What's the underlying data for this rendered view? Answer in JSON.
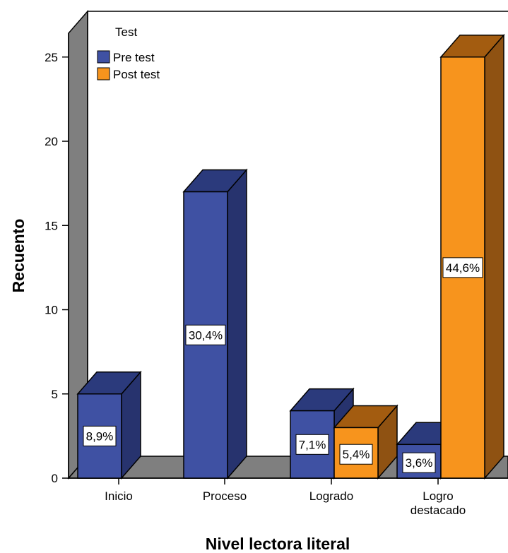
{
  "chart_data": {
    "type": "bar",
    "style": "3d-clustered",
    "categories": [
      "Inicio",
      "Proceso",
      "Logrado",
      "Logro destacado"
    ],
    "series": [
      {
        "name": "Pre test",
        "values": [
          5,
          17,
          4,
          2
        ],
        "labels": [
          "8,9%",
          "30,4%",
          "7,1%",
          "3,6%"
        ],
        "color": "#3f51a3",
        "side_color": "#27336e",
        "top_color": "#2b3a7c"
      },
      {
        "name": "Post test",
        "values": [
          0,
          0,
          3,
          25
        ],
        "labels": [
          "",
          "",
          "5,4%",
          "44,6%"
        ],
        "color": "#f7941d",
        "side_color": "#8f5212",
        "top_color": "#a35c10"
      }
    ],
    "legend_title": "Test",
    "legend_placement": "top-left",
    "xlabel": "Nivel lectora literal",
    "ylabel": "Recuento",
    "yticks": [
      0,
      5,
      10,
      15,
      20,
      25
    ],
    "ylim": [
      0,
      27.5
    ],
    "grid": false,
    "wall_color": "#7f7f7f",
    "floor_color": "#7f7f7f"
  }
}
